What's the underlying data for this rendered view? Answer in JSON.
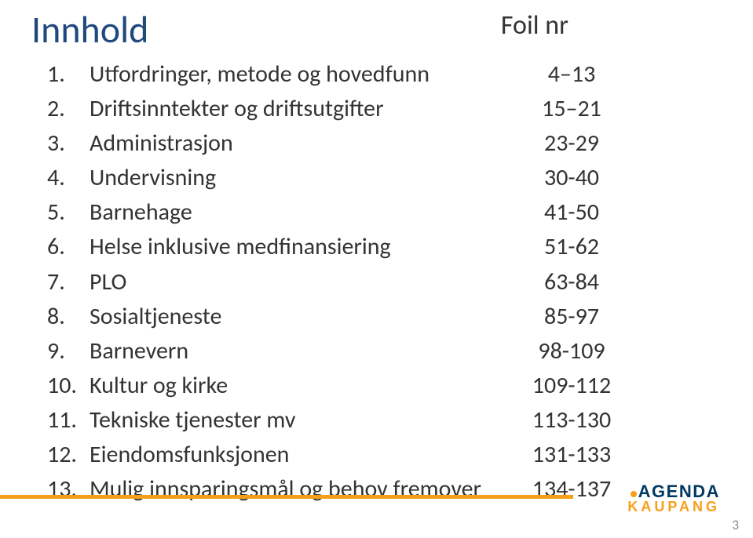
{
  "title": "Innhold",
  "column_heading": "Foil nr",
  "rows": [
    {
      "num": "1.",
      "label": "Utfordringer, metode og hovedfunn",
      "val": "4–13"
    },
    {
      "num": "2.",
      "label": "Driftsinntekter og driftsutgifter",
      "val": "15–21"
    },
    {
      "num": "3.",
      "label": "Administrasjon",
      "val": "23-29"
    },
    {
      "num": "4.",
      "label": "Undervisning",
      "val": "30-40"
    },
    {
      "num": "5.",
      "label": "Barnehage",
      "val": "41-50"
    },
    {
      "num": "6.",
      "label": "Helse inklusive medfinansiering",
      "val": "51-62"
    },
    {
      "num": "7.",
      "label": "PLO",
      "val": "63-84"
    },
    {
      "num": "8.",
      "label": "Sosialtjeneste",
      "val": "85-97"
    },
    {
      "num": "9.",
      "label": "Barnevern",
      "val": "98-109"
    },
    {
      "num": "10.",
      "label": "Kultur og kirke",
      "val": "109-112"
    },
    {
      "num": "11.",
      "label": "Tekniske tjenester mv",
      "val": "113-130"
    },
    {
      "num": "12.",
      "label": "Eiendomsfunksjonen",
      "val": "131-133"
    },
    {
      "num": "13.",
      "label": "Mulig innsparingsmål og behov fremover",
      "val": "134-137"
    }
  ],
  "logo": {
    "line1": "AGENDA",
    "line2": "KAUPANG"
  },
  "page_number": "3",
  "colors": {
    "title": "#1f497d",
    "text": "#333333",
    "accent_orange": "#f6a01a",
    "logo_blue": "#003a63",
    "background": "#ffffff"
  },
  "typography": {
    "title_fontsize_pt": 36,
    "body_fontsize_pt": 22,
    "heading_fontsize_pt": 25,
    "font_family": "Calibri"
  }
}
